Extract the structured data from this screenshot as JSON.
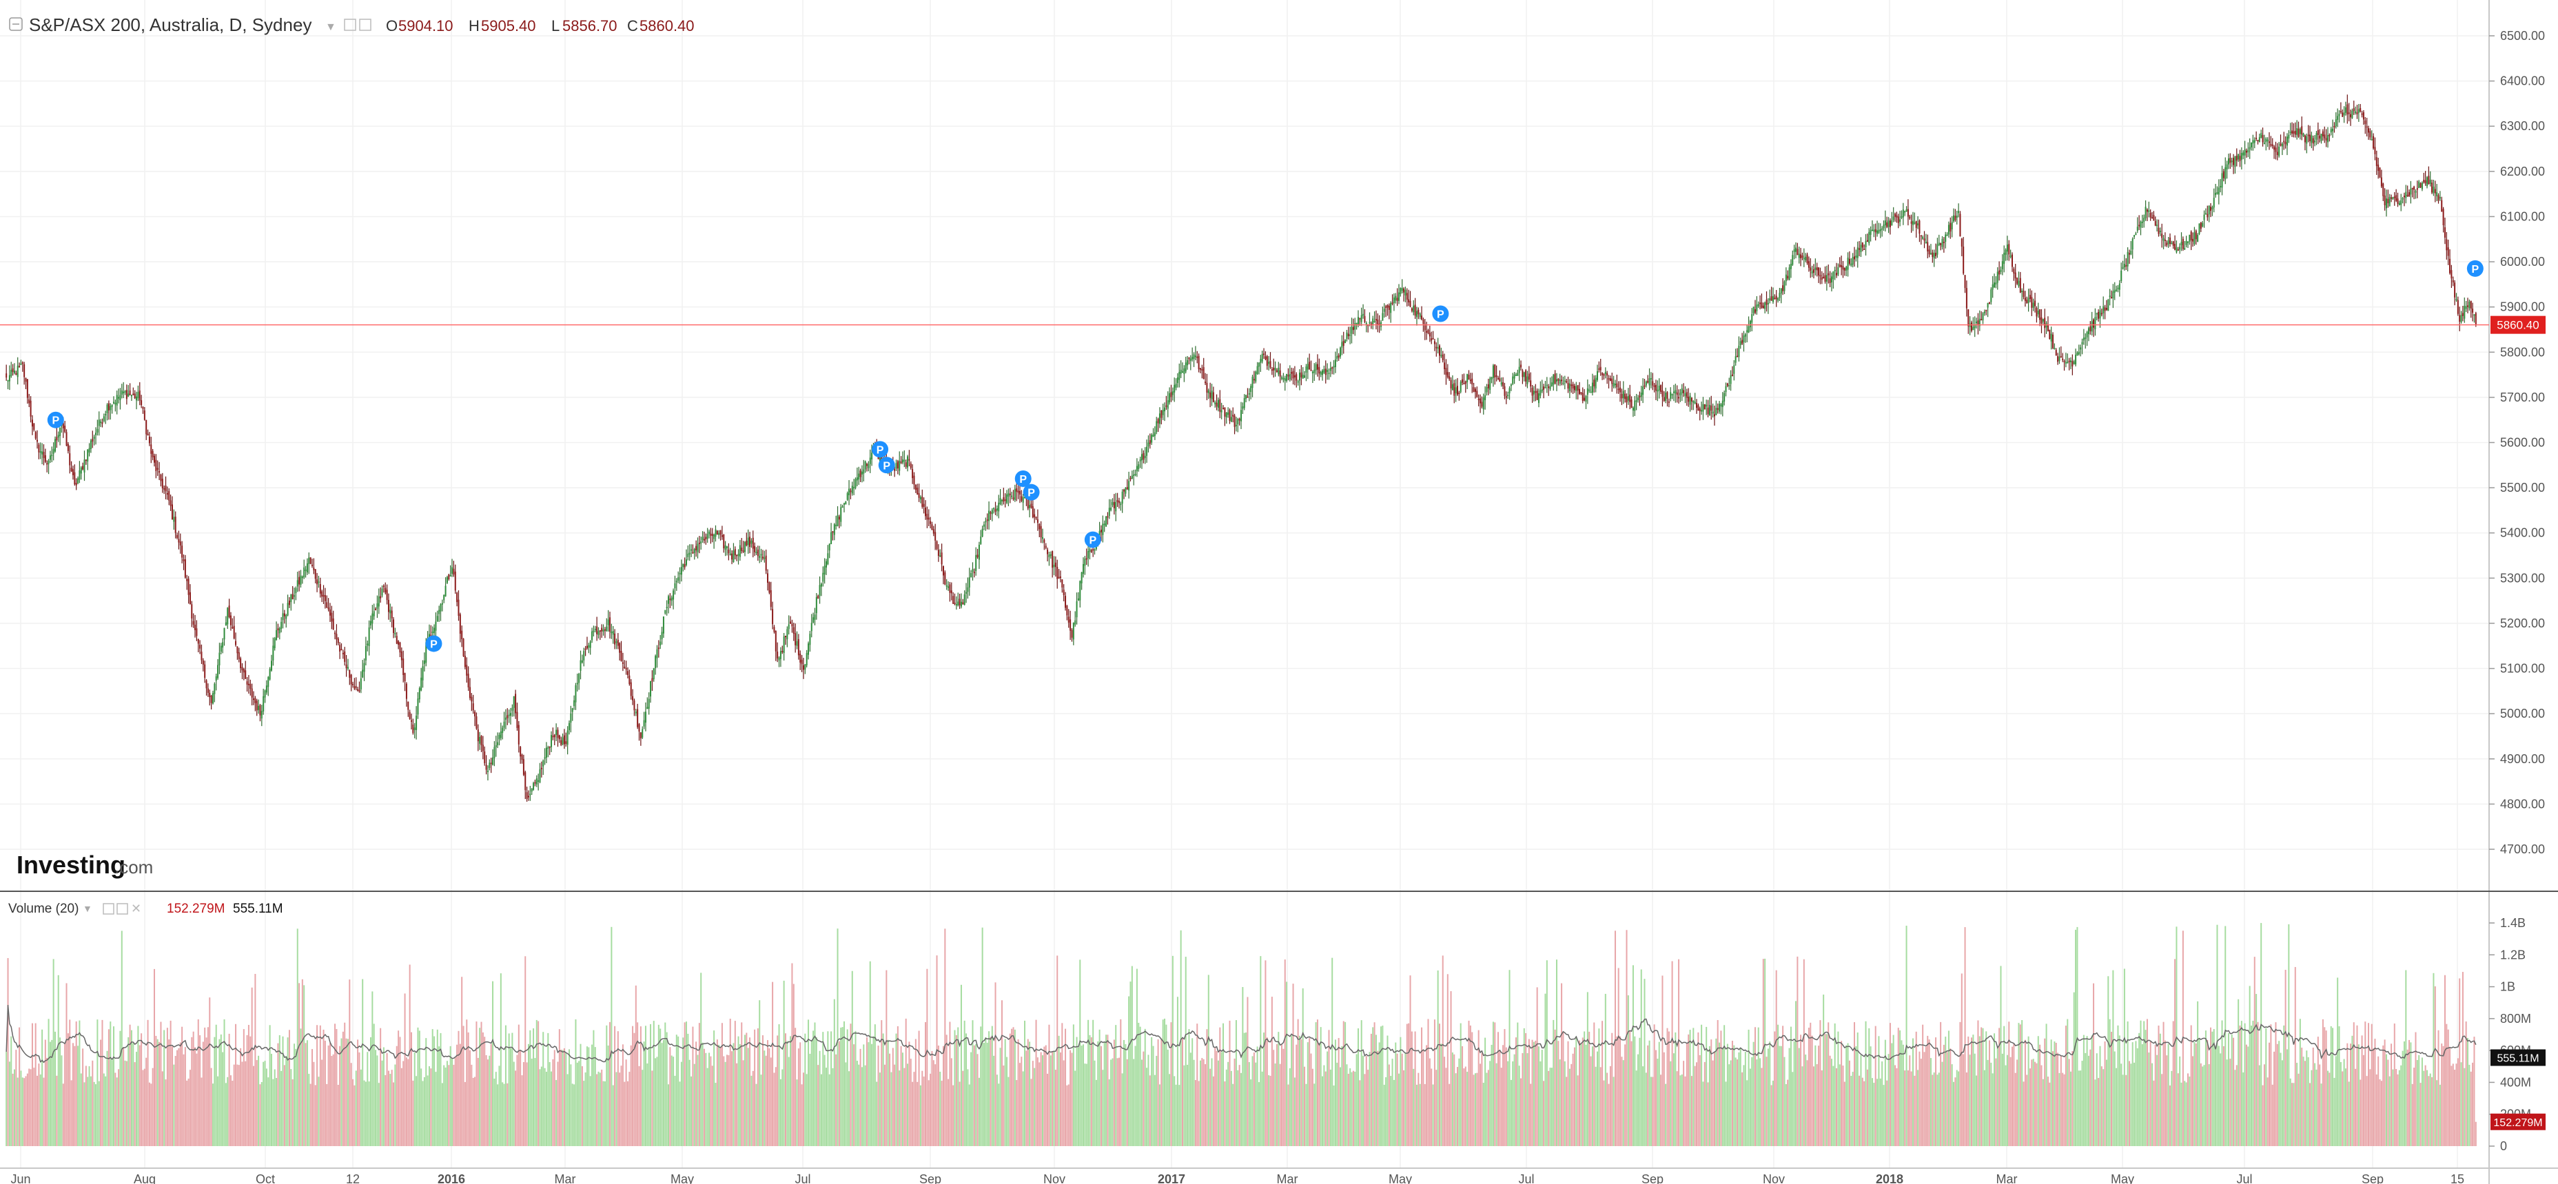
{
  "header": {
    "symbol": "S&P/ASX 200, Australia, D, Sydney",
    "ohlc": [
      {
        "label": "O",
        "value": "5904.10"
      },
      {
        "label": "H",
        "value": "5905.40"
      },
      {
        "label": "L",
        "value": "5856.70"
      },
      {
        "label": "C",
        "value": "5860.40"
      }
    ]
  },
  "watermark": {
    "brand": "Investing",
    "suffix": ".com"
  },
  "volume_legend": {
    "label": "Volume (20)",
    "value_last": "152.279M",
    "value_ma": "555.11M"
  },
  "colors": {
    "up": "#2e8b3a",
    "down": "#8b1a1a",
    "wick_up": "#2e6b2e",
    "wick_down": "#6b1010",
    "vol_up": "#a6dca0",
    "vol_down": "#e8a6a9",
    "last_price_line": "#ff4d4d",
    "last_price_tag": "#e0201f",
    "vol_ma_tag": "#111111",
    "vol_last_tag": "#c0151a",
    "grid": "#f1f1f1",
    "marker": "#1e90ff"
  },
  "chart_data": [
    {
      "type": "candlestick",
      "title": "S&P/ASX 200, Australia, D, Sydney",
      "x_ticks": [
        "Jun",
        "Aug",
        "Oct",
        "12",
        "2016",
        "Mar",
        "May",
        "Jul",
        "Sep",
        "Nov",
        "2017",
        "Mar",
        "May",
        "Jul",
        "Sep",
        "Nov",
        "2018",
        "Mar",
        "May",
        "Jul",
        "Sep",
        "15"
      ],
      "y_ticks": [
        "6500.00",
        "6400.00",
        "6300.00",
        "6200.00",
        "6100.00",
        "6000.00",
        "5900.00",
        "5800.00",
        "5700.00",
        "5600.00",
        "5500.00",
        "5400.00",
        "5300.00",
        "5200.00",
        "5100.00",
        "5000.00",
        "4900.00",
        "4800.00",
        "4700.00"
      ],
      "ylim": [
        4650,
        6560
      ],
      "last_price": 5860.4,
      "last_price_label": "5860.40",
      "close_path": [
        [
          0,
          5740
        ],
        [
          10,
          5770
        ],
        [
          18,
          5600
        ],
        [
          26,
          5550
        ],
        [
          34,
          5650
        ],
        [
          42,
          5500
        ],
        [
          52,
          5600
        ],
        [
          62,
          5680
        ],
        [
          72,
          5710
        ],
        [
          82,
          5700
        ],
        [
          90,
          5560
        ],
        [
          100,
          5470
        ],
        [
          108,
          5350
        ],
        [
          116,
          5180
        ],
        [
          126,
          5020
        ],
        [
          136,
          5230
        ],
        [
          146,
          5080
        ],
        [
          156,
          5000
        ],
        [
          166,
          5180
        ],
        [
          176,
          5260
        ],
        [
          186,
          5340
        ],
        [
          196,
          5250
        ],
        [
          206,
          5130
        ],
        [
          216,
          5040
        ],
        [
          224,
          5200
        ],
        [
          232,
          5280
        ],
        [
          242,
          5130
        ],
        [
          250,
          4950
        ],
        [
          258,
          5150
        ],
        [
          266,
          5230
        ],
        [
          274,
          5330
        ],
        [
          282,
          5100
        ],
        [
          290,
          4950
        ],
        [
          296,
          4870
        ],
        [
          304,
          4960
        ],
        [
          312,
          5030
        ],
        [
          320,
          4800
        ],
        [
          328,
          4870
        ],
        [
          336,
          4960
        ],
        [
          344,
          4930
        ],
        [
          352,
          5100
        ],
        [
          360,
          5180
        ],
        [
          370,
          5200
        ],
        [
          380,
          5110
        ],
        [
          390,
          4950
        ],
        [
          398,
          5100
        ],
        [
          406,
          5240
        ],
        [
          416,
          5330
        ],
        [
          426,
          5380
        ],
        [
          436,
          5400
        ],
        [
          446,
          5350
        ],
        [
          456,
          5380
        ],
        [
          466,
          5340
        ],
        [
          474,
          5120
        ],
        [
          482,
          5200
        ],
        [
          490,
          5100
        ],
        [
          498,
          5250
        ],
        [
          506,
          5380
        ],
        [
          514,
          5460
        ],
        [
          524,
          5530
        ],
        [
          534,
          5580
        ],
        [
          544,
          5540
        ],
        [
          554,
          5560
        ],
        [
          562,
          5470
        ],
        [
          570,
          5400
        ],
        [
          578,
          5280
        ],
        [
          586,
          5230
        ],
        [
          594,
          5310
        ],
        [
          602,
          5430
        ],
        [
          612,
          5470
        ],
        [
          622,
          5490
        ],
        [
          632,
          5440
        ],
        [
          640,
          5360
        ],
        [
          648,
          5290
        ],
        [
          655,
          5170
        ],
        [
          662,
          5330
        ],
        [
          670,
          5380
        ],
        [
          678,
          5450
        ],
        [
          686,
          5480
        ],
        [
          694,
          5530
        ],
        [
          702,
          5600
        ],
        [
          712,
          5680
        ],
        [
          722,
          5760
        ],
        [
          730,
          5800
        ],
        [
          738,
          5720
        ],
        [
          746,
          5680
        ],
        [
          756,
          5640
        ],
        [
          764,
          5720
        ],
        [
          772,
          5790
        ],
        [
          782,
          5760
        ],
        [
          792,
          5740
        ],
        [
          802,
          5770
        ],
        [
          812,
          5750
        ],
        [
          822,
          5820
        ],
        [
          832,
          5880
        ],
        [
          842,
          5860
        ],
        [
          850,
          5900
        ],
        [
          858,
          5940
        ],
        [
          866,
          5890
        ],
        [
          874,
          5850
        ],
        [
          882,
          5790
        ],
        [
          890,
          5710
        ],
        [
          898,
          5740
        ],
        [
          906,
          5680
        ],
        [
          914,
          5760
        ],
        [
          922,
          5700
        ],
        [
          930,
          5770
        ],
        [
          940,
          5700
        ],
        [
          950,
          5740
        ],
        [
          960,
          5730
        ],
        [
          970,
          5700
        ],
        [
          980,
          5760
        ],
        [
          990,
          5720
        ],
        [
          1000,
          5680
        ],
        [
          1010,
          5740
        ],
        [
          1020,
          5700
        ],
        [
          1030,
          5710
        ],
        [
          1040,
          5680
        ],
        [
          1050,
          5670
        ],
        [
          1058,
          5720
        ],
        [
          1066,
          5820
        ],
        [
          1074,
          5890
        ],
        [
          1084,
          5910
        ],
        [
          1092,
          5940
        ],
        [
          1100,
          6030
        ],
        [
          1110,
          5980
        ],
        [
          1120,
          5960
        ],
        [
          1130,
          5990
        ],
        [
          1140,
          6030
        ],
        [
          1150,
          6080
        ],
        [
          1160,
          6090
        ],
        [
          1168,
          6110
        ],
        [
          1176,
          6070
        ],
        [
          1184,
          6010
        ],
        [
          1192,
          6060
        ],
        [
          1200,
          6110
        ],
        [
          1206,
          5850
        ],
        [
          1214,
          5870
        ],
        [
          1222,
          5950
        ],
        [
          1230,
          6030
        ],
        [
          1238,
          5940
        ],
        [
          1246,
          5900
        ],
        [
          1254,
          5860
        ],
        [
          1262,
          5780
        ],
        [
          1270,
          5780
        ],
        [
          1278,
          5840
        ],
        [
          1286,
          5880
        ],
        [
          1296,
          5930
        ],
        [
          1306,
          6030
        ],
        [
          1316,
          6120
        ],
        [
          1326,
          6050
        ],
        [
          1336,
          6030
        ],
        [
          1346,
          6060
        ],
        [
          1356,
          6130
        ],
        [
          1366,
          6220
        ],
        [
          1376,
          6240
        ],
        [
          1386,
          6280
        ],
        [
          1396,
          6240
        ],
        [
          1406,
          6290
        ],
        [
          1416,
          6270
        ],
        [
          1426,
          6280
        ],
        [
          1436,
          6330
        ],
        [
          1446,
          6330
        ],
        [
          1454,
          6270
        ],
        [
          1462,
          6130
        ],
        [
          1470,
          6140
        ],
        [
          1480,
          6160
        ],
        [
          1488,
          6180
        ],
        [
          1496,
          6140
        ],
        [
          1502,
          5980
        ],
        [
          1508,
          5870
        ],
        [
          1514,
          5920
        ],
        [
          1518,
          5860
        ]
      ],
      "annotations": [
        {
          "label": "P",
          "x_frac": 0.0203,
          "price": 5650
        },
        {
          "label": "P",
          "x_frac": 0.1733,
          "price": 5155
        },
        {
          "label": "P",
          "x_frac": 0.3539,
          "price": 5585
        },
        {
          "label": "P",
          "x_frac": 0.3566,
          "price": 5550
        },
        {
          "label": "P",
          "x_frac": 0.4118,
          "price": 5520
        },
        {
          "label": "P",
          "x_frac": 0.4151,
          "price": 5490
        },
        {
          "label": "P",
          "x_frac": 0.44,
          "price": 5385
        },
        {
          "label": "P",
          "x_frac": 0.5807,
          "price": 5885
        },
        {
          "label": "P",
          "x_frac": 0.9994,
          "price": 5985
        }
      ]
    },
    {
      "type": "bar",
      "title": "Volume (20)",
      "y_ticks": [
        "1.4B",
        "1.2B",
        "1B",
        "800M",
        "600M",
        "400M",
        "200M",
        "0"
      ],
      "ylim": [
        0,
        1450000000
      ],
      "ma_period": 20,
      "ma_last": 555110000,
      "ma_last_label": "555.11M",
      "last_volume": 152279000,
      "last_volume_label": "152.279M"
    }
  ]
}
